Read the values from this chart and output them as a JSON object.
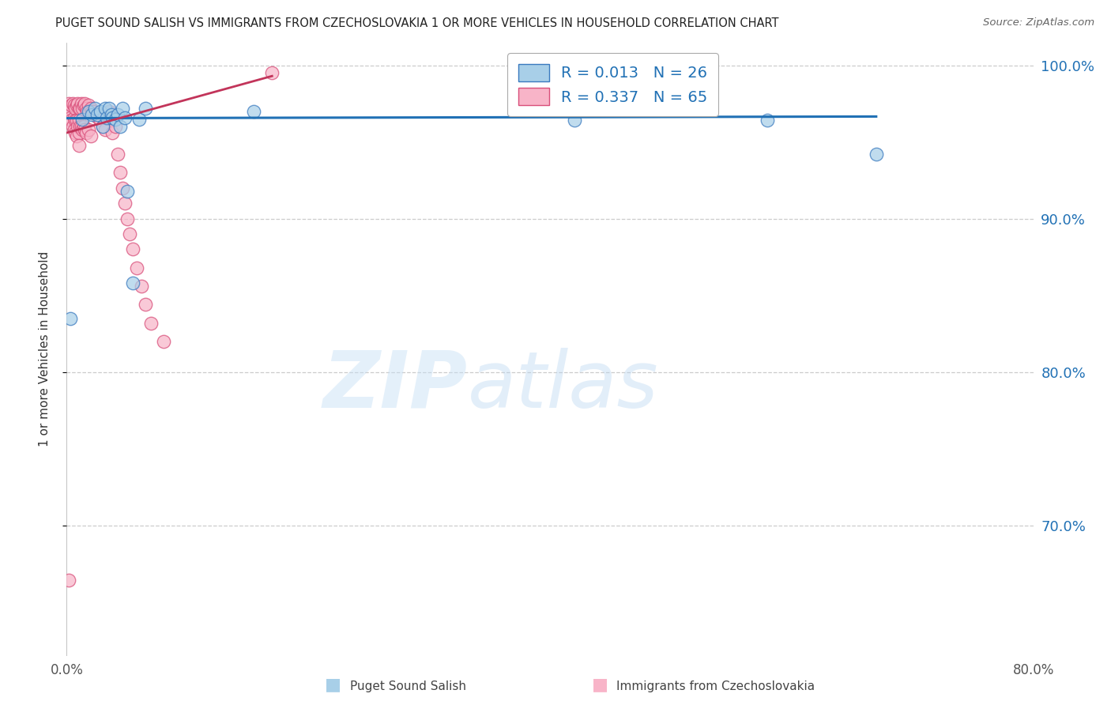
{
  "title": "PUGET SOUND SALISH VS IMMIGRANTS FROM CZECHOSLOVAKIA 1 OR MORE VEHICLES IN HOUSEHOLD CORRELATION CHART",
  "source": "Source: ZipAtlas.com",
  "ylabel": "1 or more Vehicles in Household",
  "ylabel_ticks": [
    100.0,
    90.0,
    80.0,
    70.0
  ],
  "xlim": [
    0.0,
    0.8
  ],
  "ylim": [
    0.615,
    1.015
  ],
  "r_blue": 0.013,
  "n_blue": 26,
  "r_pink": 0.337,
  "n_pink": 65,
  "legend_label_blue": "Puget Sound Salish",
  "legend_label_pink": "Immigrants from Czechoslovakia",
  "blue_color": "#a8cfe8",
  "pink_color": "#f8b4c8",
  "blue_edge_color": "#3a7abf",
  "pink_edge_color": "#d94f7a",
  "blue_line_color": "#2171b5",
  "pink_line_color": "#c2345a",
  "legend_text_color": "#2171b5",
  "grid_color": "#cccccc",
  "title_color": "#222222",
  "source_color": "#666666",
  "blue_x": [
    0.003,
    0.013,
    0.018,
    0.021,
    0.023,
    0.025,
    0.028,
    0.03,
    0.032,
    0.033,
    0.035,
    0.037,
    0.038,
    0.04,
    0.042,
    0.044,
    0.046,
    0.048,
    0.05,
    0.055,
    0.06,
    0.065,
    0.155,
    0.42,
    0.58,
    0.67
  ],
  "blue_y": [
    0.835,
    0.965,
    0.97,
    0.968,
    0.972,
    0.968,
    0.97,
    0.96,
    0.972,
    0.966,
    0.972,
    0.968,
    0.966,
    0.965,
    0.968,
    0.96,
    0.972,
    0.966,
    0.918,
    0.858,
    0.965,
    0.972,
    0.97,
    0.964,
    0.964,
    0.942
  ],
  "pink_x": [
    0.002,
    0.003,
    0.003,
    0.004,
    0.004,
    0.005,
    0.005,
    0.006,
    0.006,
    0.006,
    0.007,
    0.007,
    0.007,
    0.008,
    0.008,
    0.008,
    0.009,
    0.009,
    0.01,
    0.01,
    0.01,
    0.01,
    0.011,
    0.011,
    0.012,
    0.012,
    0.013,
    0.013,
    0.014,
    0.014,
    0.015,
    0.015,
    0.016,
    0.016,
    0.017,
    0.018,
    0.018,
    0.019,
    0.02,
    0.02,
    0.021,
    0.022,
    0.023,
    0.024,
    0.026,
    0.028,
    0.03,
    0.032,
    0.035,
    0.038,
    0.04,
    0.042,
    0.044,
    0.046,
    0.048,
    0.05,
    0.052,
    0.055,
    0.058,
    0.062,
    0.065,
    0.07,
    0.08,
    0.17,
    0.002
  ],
  "pink_y": [
    0.975,
    0.972,
    0.966,
    0.974,
    0.964,
    0.975,
    0.96,
    0.974,
    0.966,
    0.958,
    0.972,
    0.964,
    0.956,
    0.974,
    0.964,
    0.954,
    0.975,
    0.96,
    0.972,
    0.964,
    0.956,
    0.948,
    0.972,
    0.96,
    0.975,
    0.96,
    0.972,
    0.958,
    0.974,
    0.96,
    0.975,
    0.958,
    0.972,
    0.956,
    0.97,
    0.974,
    0.958,
    0.97,
    0.972,
    0.954,
    0.97,
    0.97,
    0.968,
    0.968,
    0.966,
    0.964,
    0.96,
    0.958,
    0.97,
    0.956,
    0.96,
    0.942,
    0.93,
    0.92,
    0.91,
    0.9,
    0.89,
    0.88,
    0.868,
    0.856,
    0.844,
    0.832,
    0.82,
    0.995,
    0.664
  ],
  "blue_line_x": [
    0.0,
    0.67
  ],
  "blue_line_y": [
    0.9655,
    0.9666
  ],
  "pink_line_x": [
    0.0,
    0.17
  ],
  "pink_line_y": [
    0.956,
    0.993
  ]
}
